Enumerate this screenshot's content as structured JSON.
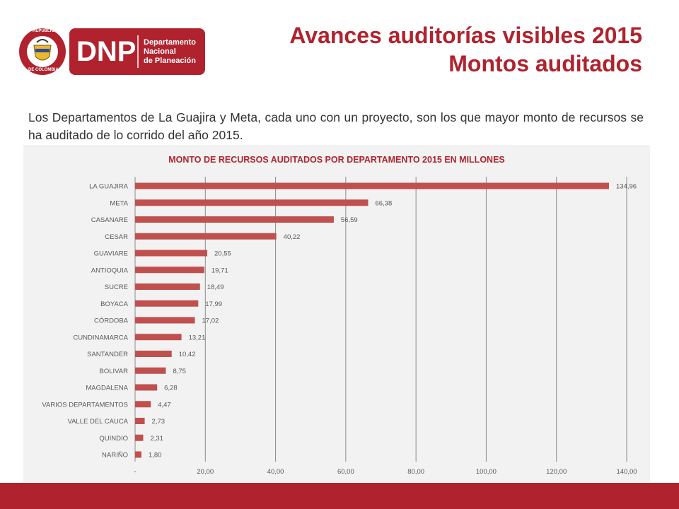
{
  "header": {
    "title_line1": "Avances auditorías visibles 2015",
    "title_line2": "Montos auditados"
  },
  "logo": {
    "seal_text_top": "REPÚBLICA",
    "seal_text_bottom": "DE COLOMBIA",
    "abbr": "DNP",
    "line1": "Departamento",
    "line2": "Nacional",
    "line3": "de Planeación"
  },
  "intro_text": "Los Departamentos de La Guajira y Meta, cada uno con un proyecto, son los que mayor monto de recursos se ha auditado de lo corrido del año 2015.",
  "colors": {
    "brand": "#b0232e",
    "bar": "#c0504d",
    "panel": "#f2f2f2"
  },
  "chart_data": {
    "type": "bar",
    "orientation": "horizontal",
    "title": "MONTO DE RECURSOS AUDITADOS POR DEPARTAMENTO 2015 EN MILLONES",
    "categories": [
      "LA GUAJIRA",
      "META",
      "CASANARE",
      "CESAR",
      "GUAVIARE",
      "ANTIOQUIA",
      "SUCRE",
      "BOYACA",
      "CÓRDOBA",
      "CUNDINAMARCA",
      "SANTANDER",
      "BOLIVAR",
      "MAGDALENA",
      "VARIOS DEPARTAMENTOS",
      "VALLE DEL CAUCA",
      "QUINDIO",
      "NARIÑO"
    ],
    "values": [
      134.96,
      66.38,
      56.59,
      40.22,
      20.55,
      19.71,
      18.49,
      17.99,
      17.02,
      13.21,
      10.42,
      8.75,
      6.28,
      4.47,
      2.73,
      2.31,
      1.8
    ],
    "value_labels": [
      "134,96",
      "66,38",
      "56,59",
      "40,22",
      "20,55",
      "19,71",
      "18,49",
      "17,99",
      "17,02",
      "13,21",
      "10,42",
      "8,75",
      "6,28",
      "4,47",
      "2,73",
      "2,31",
      "1,80"
    ],
    "xlim": [
      0,
      140
    ],
    "xticks": [
      0,
      20,
      40,
      60,
      80,
      100,
      120,
      140
    ],
    "xtick_labels": [
      "-",
      "20,00",
      "40,00",
      "60,00",
      "80,00",
      "100,00",
      "120,00",
      "140,00"
    ],
    "grid": true,
    "xlabel": "",
    "ylabel": ""
  }
}
